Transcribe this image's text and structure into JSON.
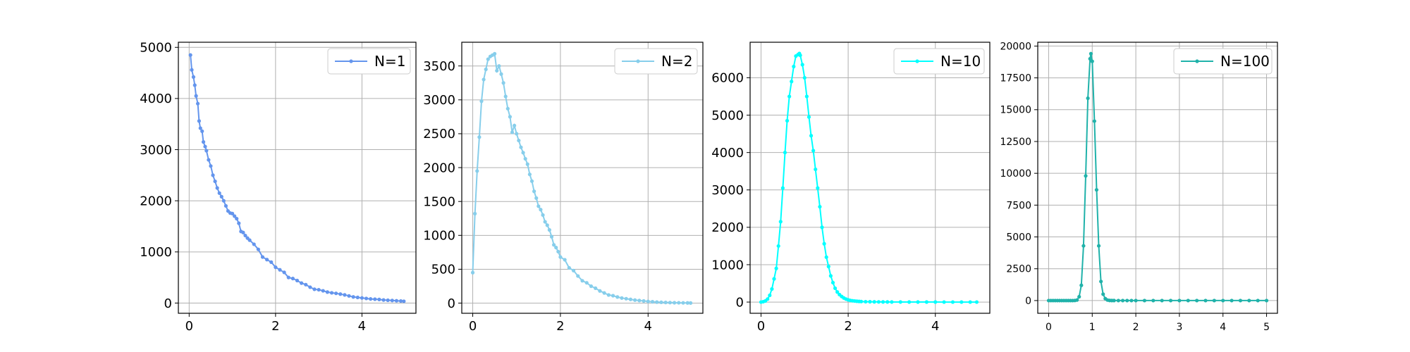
{
  "chart_data": [
    {
      "type": "line",
      "title": "",
      "xlabel": "",
      "ylabel": "",
      "xlim": [
        -0.25,
        5.25
      ],
      "ylim": [
        -200,
        5100
      ],
      "xticks": [
        0,
        2,
        4
      ],
      "yticks": [
        0,
        1000,
        2000,
        3000,
        4000,
        5000
      ],
      "grid": true,
      "legend": "top-right",
      "series": [
        {
          "name": "N=1",
          "color": "#6495ED",
          "x": [
            0.03,
            0.06,
            0.1,
            0.13,
            0.16,
            0.2,
            0.23,
            0.26,
            0.3,
            0.33,
            0.37,
            0.4,
            0.45,
            0.5,
            0.55,
            0.6,
            0.65,
            0.7,
            0.75,
            0.8,
            0.85,
            0.9,
            0.95,
            1.0,
            1.05,
            1.1,
            1.15,
            1.2,
            1.25,
            1.3,
            1.35,
            1.4,
            1.5,
            1.6,
            1.7,
            1.8,
            1.9,
            2.0,
            2.1,
            2.2,
            2.3,
            2.4,
            2.5,
            2.6,
            2.7,
            2.8,
            2.9,
            3.0,
            3.1,
            3.2,
            3.3,
            3.4,
            3.5,
            3.6,
            3.7,
            3.8,
            3.9,
            4.0,
            4.1,
            4.2,
            4.3,
            4.4,
            4.5,
            4.6,
            4.7,
            4.8,
            4.9,
            4.97
          ],
          "y": [
            4850,
            4560,
            4420,
            4260,
            4050,
            3900,
            3560,
            3420,
            3360,
            3150,
            3060,
            2980,
            2800,
            2680,
            2500,
            2380,
            2250,
            2150,
            2080,
            2000,
            1900,
            1800,
            1760,
            1750,
            1700,
            1650,
            1560,
            1400,
            1380,
            1320,
            1270,
            1230,
            1150,
            1050,
            900,
            850,
            800,
            700,
            650,
            600,
            500,
            480,
            440,
            390,
            360,
            310,
            270,
            260,
            240,
            215,
            200,
            190,
            175,
            160,
            140,
            120,
            110,
            100,
            90,
            80,
            75,
            70,
            60,
            55,
            50,
            45,
            40,
            35
          ]
        }
      ]
    },
    {
      "type": "line",
      "title": "",
      "xlabel": "",
      "ylabel": "",
      "xlim": [
        -0.25,
        5.25
      ],
      "ylim": [
        -150,
        3850
      ],
      "xticks": [
        0,
        2,
        4
      ],
      "yticks": [
        0,
        500,
        1000,
        1500,
        2000,
        2500,
        3000,
        3500
      ],
      "grid": true,
      "legend": "top-right",
      "series": [
        {
          "name": "N=2",
          "color": "#87CEEB",
          "x": [
            0.0,
            0.05,
            0.1,
            0.15,
            0.2,
            0.25,
            0.3,
            0.35,
            0.4,
            0.45,
            0.5,
            0.55,
            0.6,
            0.65,
            0.7,
            0.75,
            0.8,
            0.85,
            0.9,
            0.95,
            1.0,
            1.05,
            1.1,
            1.15,
            1.2,
            1.25,
            1.3,
            1.35,
            1.4,
            1.45,
            1.5,
            1.55,
            1.6,
            1.65,
            1.7,
            1.75,
            1.8,
            1.85,
            1.9,
            1.95,
            2.0,
            2.1,
            2.2,
            2.3,
            2.4,
            2.5,
            2.6,
            2.7,
            2.8,
            2.9,
            3.0,
            3.1,
            3.2,
            3.3,
            3.4,
            3.5,
            3.6,
            3.7,
            3.8,
            3.9,
            4.0,
            4.1,
            4.2,
            4.3,
            4.4,
            4.5,
            4.6,
            4.7,
            4.8,
            4.9,
            4.97
          ],
          "y": [
            450,
            1320,
            1950,
            2450,
            2980,
            3300,
            3450,
            3600,
            3640,
            3660,
            3680,
            3430,
            3500,
            3380,
            3250,
            3050,
            2870,
            2750,
            2520,
            2620,
            2500,
            2400,
            2300,
            2220,
            2130,
            2050,
            1900,
            1800,
            1650,
            1550,
            1430,
            1380,
            1300,
            1200,
            1150,
            1080,
            980,
            860,
            820,
            760,
            680,
            640,
            520,
            480,
            400,
            330,
            300,
            250,
            220,
            180,
            150,
            120,
            110,
            90,
            75,
            65,
            55,
            45,
            38,
            32,
            25,
            20,
            15,
            12,
            10,
            8,
            6,
            5,
            4,
            3,
            2
          ]
        }
      ]
    },
    {
      "type": "line",
      "title": "",
      "xlabel": "",
      "ylabel": "",
      "xlim": [
        -0.25,
        5.25
      ],
      "ylim": [
        -300,
        6950
      ],
      "xticks": [
        0,
        2,
        4
      ],
      "yticks": [
        0,
        1000,
        2000,
        3000,
        4000,
        5000,
        6000
      ],
      "grid": true,
      "legend": "top-right",
      "series": [
        {
          "name": "N=10",
          "color": "#00FFFF",
          "x": [
            0.0,
            0.05,
            0.1,
            0.15,
            0.2,
            0.25,
            0.3,
            0.35,
            0.4,
            0.45,
            0.5,
            0.55,
            0.6,
            0.65,
            0.7,
            0.75,
            0.8,
            0.85,
            0.88,
            0.9,
            0.95,
            1.0,
            1.05,
            1.1,
            1.15,
            1.2,
            1.25,
            1.3,
            1.35,
            1.4,
            1.45,
            1.5,
            1.55,
            1.6,
            1.65,
            1.7,
            1.75,
            1.8,
            1.85,
            1.9,
            1.95,
            2.0,
            2.05,
            2.1,
            2.15,
            2.2,
            2.25,
            2.3,
            2.4,
            2.5,
            2.6,
            2.7,
            2.8,
            2.9,
            3.0,
            3.2,
            3.4,
            3.6,
            3.8,
            4.0,
            4.2,
            4.4,
            4.6,
            4.8,
            4.95
          ],
          "y": [
            0,
            10,
            30,
            80,
            180,
            350,
            620,
            900,
            1500,
            2150,
            3050,
            4000,
            4850,
            5500,
            5900,
            6300,
            6580,
            6620,
            6650,
            6600,
            6350,
            6000,
            5500,
            4950,
            4450,
            4050,
            3550,
            3050,
            2550,
            2000,
            1560,
            1200,
            950,
            700,
            520,
            370,
            270,
            200,
            150,
            110,
            80,
            60,
            45,
            35,
            28,
            22,
            18,
            14,
            10,
            8,
            6,
            5,
            4,
            3,
            2,
            2,
            1,
            1,
            1,
            1,
            0,
            0,
            0,
            0,
            0
          ]
        }
      ]
    },
    {
      "type": "line",
      "title": "",
      "xlabel": "",
      "ylabel": "",
      "xlim": [
        -0.25,
        5.25
      ],
      "ylim": [
        -1000,
        20300
      ],
      "xticks": [
        0,
        1,
        2,
        3,
        4,
        5
      ],
      "yticks": [
        0,
        2500,
        5000,
        7500,
        10000,
        12500,
        15000,
        17500,
        20000
      ],
      "grid": true,
      "legend": "top-right",
      "series": [
        {
          "name": "N=100",
          "color": "#20B2AA",
          "x": [
            0.0,
            0.05,
            0.1,
            0.15,
            0.2,
            0.25,
            0.3,
            0.35,
            0.4,
            0.45,
            0.5,
            0.55,
            0.6,
            0.65,
            0.7,
            0.75,
            0.8,
            0.85,
            0.9,
            0.95,
            0.97,
            1.0,
            1.05,
            1.1,
            1.15,
            1.2,
            1.25,
            1.3,
            1.35,
            1.4,
            1.45,
            1.5,
            1.6,
            1.7,
            1.8,
            1.9,
            2.0,
            2.2,
            2.4,
            2.6,
            2.8,
            3.0,
            3.2,
            3.4,
            3.6,
            3.8,
            4.0,
            4.2,
            4.4,
            4.6,
            4.8,
            5.0
          ],
          "y": [
            0,
            0,
            0,
            0,
            0,
            0,
            0,
            0,
            0,
            0,
            0,
            0,
            5,
            40,
            300,
            1200,
            4300,
            9800,
            15900,
            19000,
            19400,
            18800,
            14100,
            8700,
            4300,
            1500,
            500,
            150,
            40,
            10,
            3,
            1,
            0,
            0,
            0,
            0,
            0,
            0,
            0,
            0,
            0,
            0,
            0,
            0,
            0,
            0,
            0,
            0,
            0,
            0,
            0,
            0
          ]
        }
      ]
    }
  ]
}
